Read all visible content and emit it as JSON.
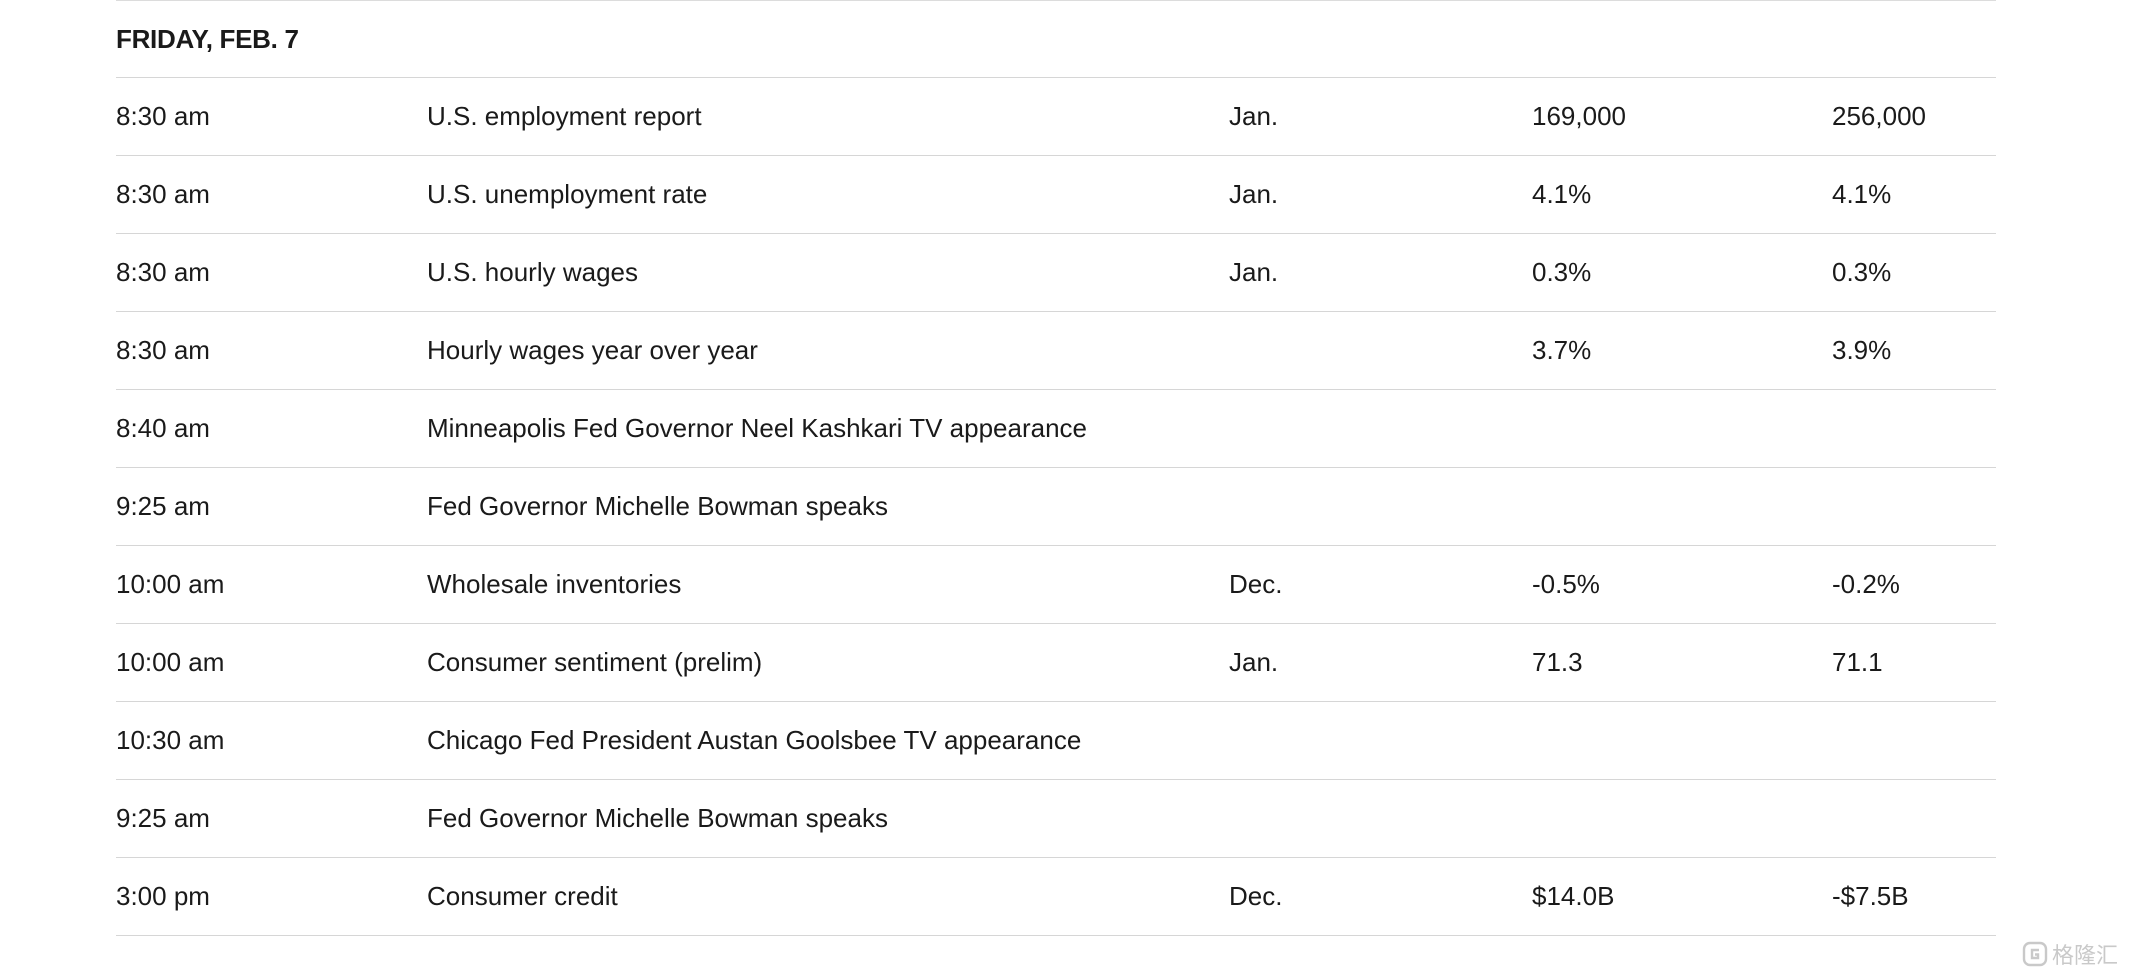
{
  "day": "FRIDAY, FEB. 7",
  "rows": [
    {
      "time": "8:30 am",
      "report": "U.S. employment report",
      "period": "Jan.",
      "median": "169,000",
      "previous": "256,000"
    },
    {
      "time": "8:30 am",
      "report": "U.S. unemployment rate",
      "period": "Jan.",
      "median": "4.1%",
      "previous": "4.1%"
    },
    {
      "time": "8:30 am",
      "report": "U.S. hourly wages",
      "period": "Jan.",
      "median": "0.3%",
      "previous": "0.3%"
    },
    {
      "time": "8:30 am",
      "report": "Hourly wages year over year",
      "period": "",
      "median": "3.7%",
      "previous": "3.9%"
    },
    {
      "time": "8:40 am",
      "report": "Minneapolis Fed Governor Neel Kashkari TV appearance",
      "period": "",
      "median": "",
      "previous": ""
    },
    {
      "time": "9:25 am",
      "report": "Fed Governor Michelle Bowman speaks",
      "period": "",
      "median": "",
      "previous": ""
    },
    {
      "time": "10:00 am",
      "report": "Wholesale inventories",
      "period": "Dec.",
      "median": "-0.5%",
      "previous": "-0.2%"
    },
    {
      "time": "10:00 am",
      "report": "Consumer sentiment (prelim)",
      "period": "Jan.",
      "median": "71.3",
      "previous": "71.1"
    },
    {
      "time": "10:30 am",
      "report": "Chicago Fed President Austan Goolsbee TV appearance",
      "period": "",
      "median": "",
      "previous": ""
    },
    {
      "time": "9:25 am",
      "report": "Fed Governor Michelle Bowman speaks",
      "period": "",
      "median": "",
      "previous": ""
    },
    {
      "time": "3:00 pm",
      "report": "Consumer credit",
      "period": "Dec.",
      "median": "$14.0B",
      "previous": "-$7.5B"
    }
  ],
  "watermark": {
    "text": "格隆汇",
    "icon": "gelonghui-logo-icon"
  }
}
